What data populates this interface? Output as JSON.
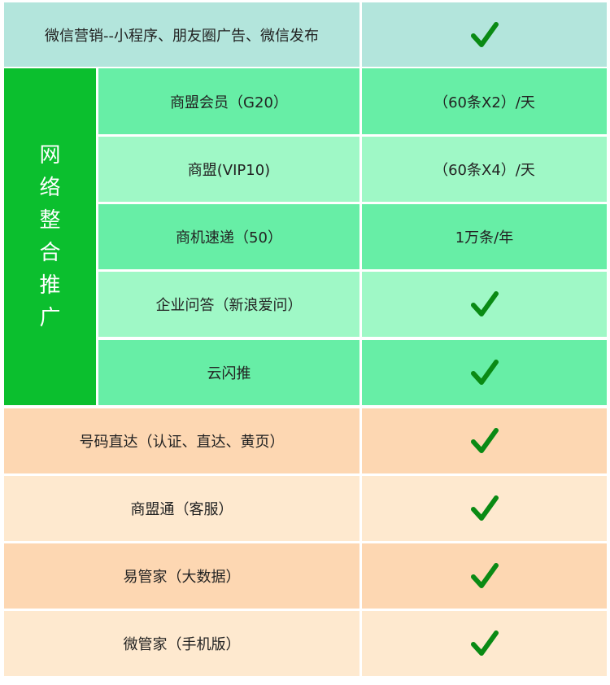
{
  "colors": {
    "check": "#0a8a14",
    "group": "#0bbf2e",
    "teal": "#b3e5dc",
    "green_dark_row": "#67eea6",
    "green_light_row": "#9ff8c6",
    "orange_dark_row": "#fdd7b2",
    "orange_light_row": "#fee9cf"
  },
  "top_row": {
    "label": "微信营销--小程序、朋友圈广告、微信发布",
    "value_icon": "check-icon"
  },
  "group": {
    "chars": [
      "网",
      "络",
      "整",
      "合",
      "推",
      "广"
    ],
    "rows": [
      {
        "label": "商盟会员（G20）",
        "value": "（60条X2）/天"
      },
      {
        "label": "商盟(VIP10)",
        "value": "（60条X4）/天"
      },
      {
        "label": "商机速递（50）",
        "value": "1万条/年"
      },
      {
        "label": "企业问答（新浪爱问）",
        "value_icon": "check-icon"
      },
      {
        "label": "云闪推",
        "value_icon": "check-icon"
      }
    ]
  },
  "bottom_rows": [
    {
      "label": "号码直达（认证、直达、黄页）",
      "value_icon": "check-icon"
    },
    {
      "label": "商盟通（客服）",
      "value_icon": "check-icon"
    },
    {
      "label": "易管家（大数据）",
      "value_icon": "check-icon"
    },
    {
      "label": "微管家（手机版）",
      "value_icon": "check-icon"
    }
  ]
}
